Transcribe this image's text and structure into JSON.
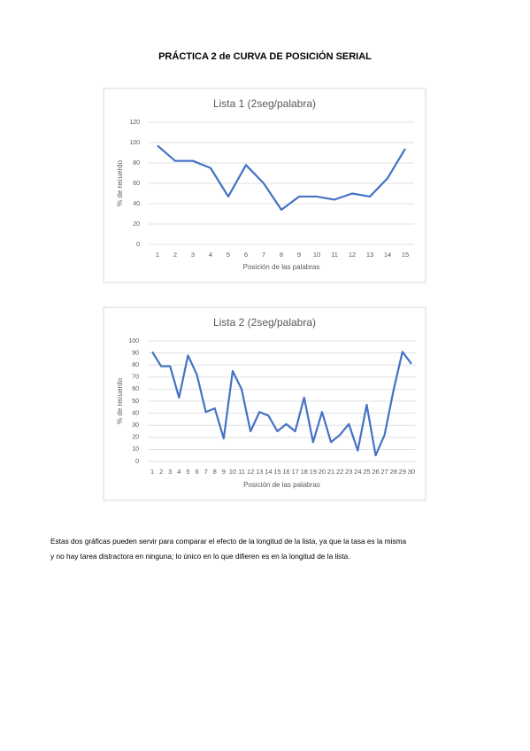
{
  "title": "PRÁCTICA 2 de CURVA DE POSICIÓN SERIAL",
  "chart_data": [
    {
      "type": "line",
      "title": "Lista 1 (2seg/palabra)",
      "x_label": "Posición de las palabras",
      "y_label": "% de recuerdo",
      "categories": [
        1,
        2,
        3,
        4,
        5,
        6,
        7,
        8,
        9,
        10,
        11,
        12,
        13,
        14,
        15
      ],
      "values": [
        97,
        82,
        82,
        75,
        47,
        78,
        60,
        34,
        47,
        47,
        44,
        50,
        47,
        65,
        94
      ],
      "color": "#4472c4",
      "ylim": [
        0,
        120
      ],
      "yticks": [
        0,
        20,
        40,
        60,
        80,
        100,
        120
      ],
      "grid": true
    },
    {
      "type": "line",
      "title": "Lista 2 (2seg/palabra)",
      "x_label": "Posición de las palabras",
      "y_label": "% de recuerdo",
      "categories": [
        1,
        2,
        3,
        4,
        5,
        6,
        7,
        8,
        9,
        10,
        11,
        12,
        13,
        14,
        15,
        16,
        17,
        18,
        19,
        20,
        21,
        22,
        23,
        24,
        25,
        26,
        27,
        28,
        29,
        30
      ],
      "values": [
        91,
        79,
        79,
        53,
        88,
        72,
        41,
        44,
        19,
        75,
        60,
        25,
        41,
        38,
        25,
        31,
        25,
        53,
        16,
        41,
        16,
        22,
        31,
        9,
        47,
        5,
        22,
        59,
        91,
        81
      ],
      "color": "#4472c4",
      "ylim": [
        0,
        100
      ],
      "yticks": [
        0,
        10,
        20,
        30,
        40,
        50,
        60,
        70,
        80,
        90,
        100
      ],
      "grid": true
    }
  ],
  "paragraph_lines": [
    "Estas dos gráficas pueden servir para comparar el efecto de la longitud de la lista, ya que la tasa es la misma",
    "y no hay tarea distractora en ninguna; lo único en lo que difieren es en la longitud de la lista."
  ]
}
